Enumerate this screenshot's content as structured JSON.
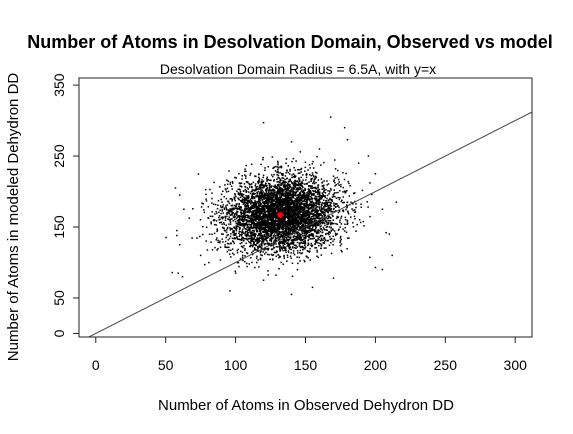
{
  "chart_data": {
    "type": "scatter",
    "title": "Number of Atoms in Desolvation Domain, Observed vs model",
    "subtitle": "Desolvation Domain Radius = 6.5A, with y=x",
    "xlabel": "Number of Atoms in Observed Dehydron DD",
    "ylabel": "Number of Atoms in modeled Dehydron DD",
    "xlim": [
      -12,
      312
    ],
    "ylim": [
      -5,
      360
    ],
    "xticks": [
      0,
      50,
      100,
      150,
      200,
      250,
      300
    ],
    "yticks": [
      0,
      50,
      150,
      250,
      350
    ],
    "grid": false,
    "reference_line": {
      "label": "y=x",
      "slope": 1,
      "intercept": 0
    },
    "series": [
      {
        "marker": "point",
        "color": "#000000",
        "distribution": {
          "x_mean": 133,
          "x_sd": 20,
          "y_mean": 168,
          "y_sd": 26
        },
        "outliers": [
          [
            57,
            205
          ],
          [
            58,
            145
          ],
          [
            58,
            138
          ],
          [
            60,
            125
          ],
          [
            59,
            85
          ],
          [
            62,
            80
          ],
          [
            60,
            195
          ],
          [
            63,
            175
          ],
          [
            75,
            110
          ],
          [
            78,
            97
          ],
          [
            85,
            160
          ],
          [
            120,
            297
          ],
          [
            140,
            270
          ],
          [
            160,
            260
          ],
          [
            168,
            305
          ],
          [
            178,
            290
          ],
          [
            180,
            273
          ],
          [
            188,
            240
          ],
          [
            195,
            250
          ],
          [
            200,
            225
          ],
          [
            205,
            175
          ],
          [
            210,
            140
          ],
          [
            212,
            110
          ],
          [
            200,
            93
          ],
          [
            205,
            90
          ],
          [
            120,
            75
          ],
          [
            96,
            60
          ],
          [
            140,
            55
          ],
          [
            155,
            65
          ],
          [
            170,
            78
          ],
          [
            100,
            85
          ],
          [
            215,
            185
          ]
        ]
      },
      {
        "marker": "circle",
        "color": "#ff0000",
        "points": [
          [
            132,
            167
          ]
        ]
      }
    ]
  }
}
